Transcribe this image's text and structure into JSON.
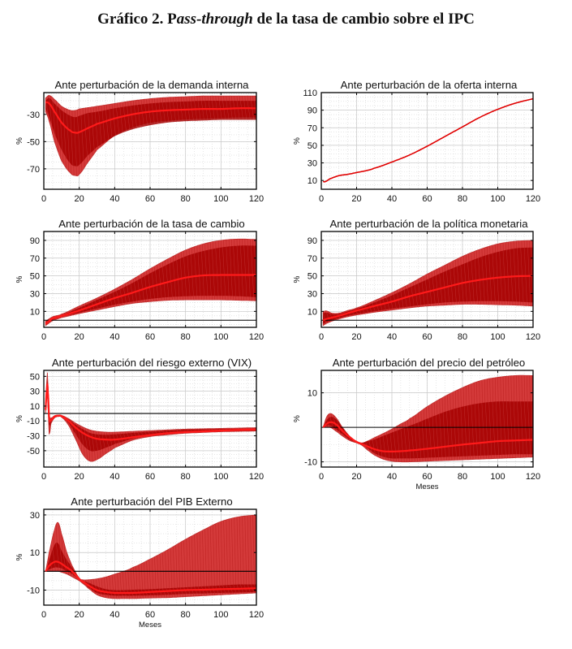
{
  "figure": {
    "title_prefix": "Gráfico 2. P",
    "title_italic": "ass-through",
    "title_suffix": " de la tasa de cambio sobre el IPC"
  },
  "colors": {
    "band_outer": "#d43a3a",
    "band_inner": "#a50000",
    "median_line": "#ff1a1a",
    "zero_line": "#000000",
    "grid": "#c8c8c8"
  },
  "chart_data": [
    {
      "id": "demanda-interna",
      "type": "area",
      "title": "Ante perturbación de la demanda interna",
      "xlabel": "",
      "ylabel": "%",
      "xlim": [
        0,
        120
      ],
      "ylim": [
        -85,
        -14
      ],
      "xticks": [
        0,
        20,
        40,
        60,
        80,
        100,
        120
      ],
      "yticks": [
        -30,
        -50,
        -70
      ],
      "zero_line": false,
      "x": [
        1,
        3,
        6,
        10,
        15,
        18,
        20,
        25,
        30,
        40,
        50,
        60,
        70,
        80,
        90,
        100,
        110,
        120
      ],
      "series": [
        {
          "name": "upper",
          "values": [
            -18,
            -16,
            -19,
            -24,
            -27,
            -27,
            -26,
            -25,
            -24,
            -22,
            -20,
            -18.5,
            -17.5,
            -17,
            -16.5,
            -16.5,
            -16.5,
            -16.5
          ]
        },
        {
          "name": "inner_upper",
          "values": [
            -20,
            -18,
            -22,
            -27,
            -31,
            -32,
            -31,
            -29,
            -28,
            -25.5,
            -23.5,
            -22,
            -21,
            -20.5,
            -20,
            -20,
            -20,
            -20
          ]
        },
        {
          "name": "median",
          "values": [
            -21,
            -22,
            -28,
            -36,
            -42,
            -43.5,
            -43,
            -40,
            -37,
            -33,
            -30,
            -28,
            -27,
            -26.5,
            -26,
            -26,
            -25.5,
            -25.5
          ]
        },
        {
          "name": "inner_lower",
          "values": [
            -26,
            -32,
            -44,
            -56,
            -66,
            -68,
            -67,
            -60,
            -54,
            -46,
            -41,
            -38,
            -36,
            -35,
            -34.5,
            -34,
            -34,
            -34
          ]
        },
        {
          "name": "lower",
          "values": [
            -28,
            -35,
            -50,
            -64,
            -73,
            -75,
            -74,
            -65,
            -56,
            -45.5,
            -39.5,
            -36,
            -34.5,
            -33.5,
            -33,
            -32.5,
            -32,
            -32
          ]
        }
      ]
    },
    {
      "id": "oferta-interna",
      "type": "line",
      "title": "Ante perturbación de la oferta interna",
      "xlabel": "",
      "ylabel": "%",
      "xlim": [
        0,
        120
      ],
      "ylim": [
        0,
        110
      ],
      "xticks": [
        0,
        20,
        40,
        60,
        80,
        100,
        120
      ],
      "yticks": [
        10,
        30,
        50,
        70,
        90,
        110
      ],
      "zero_line": false,
      "x": [
        1,
        2,
        5,
        10,
        15,
        20,
        25,
        30,
        40,
        50,
        60,
        70,
        80,
        90,
        100,
        110,
        120
      ],
      "series": [
        {
          "name": "median",
          "values": [
            9,
            8.5,
            12,
            15.5,
            17,
            19,
            21,
            24,
            31,
            39,
            49,
            60,
            71,
            82,
            91,
            98,
            103
          ]
        }
      ]
    },
    {
      "id": "tasa-de-cambio",
      "type": "area",
      "title": "Ante perturbación de la tasa de cambio",
      "xlabel": "",
      "ylabel": "%",
      "xlim": [
        0,
        120
      ],
      "ylim": [
        -8,
        100
      ],
      "xticks": [
        0,
        20,
        40,
        60,
        80,
        100,
        120
      ],
      "yticks": [
        10,
        30,
        50,
        70,
        90
      ],
      "zero_line": true,
      "x": [
        1,
        5,
        10,
        20,
        30,
        40,
        50,
        60,
        70,
        80,
        90,
        100,
        110,
        120
      ],
      "series": [
        {
          "name": "upper",
          "values": [
            -1,
            4,
            7,
            16,
            25,
            35,
            46,
            58,
            69,
            79,
            86,
            90,
            91.5,
            91
          ]
        },
        {
          "name": "inner_upper",
          "values": [
            -2,
            3,
            6,
            14,
            23,
            32,
            42,
            53,
            63,
            72,
            78,
            82,
            84,
            84
          ]
        },
        {
          "name": "median",
          "values": [
            -4,
            2,
            5,
            11,
            18,
            25,
            31,
            37.5,
            43,
            48,
            50.5,
            51,
            51,
            51
          ]
        },
        {
          "name": "inner_lower",
          "values": [
            -5,
            0.5,
            4,
            8.5,
            13,
            17.5,
            21,
            24,
            26,
            27,
            27.5,
            27.5,
            27,
            26
          ]
        },
        {
          "name": "lower",
          "values": [
            -6,
            -0.5,
            3,
            7.5,
            11.5,
            15.5,
            19,
            21,
            22.5,
            23,
            23,
            23,
            22.5,
            22
          ]
        }
      ]
    },
    {
      "id": "politica-monetaria",
      "type": "area",
      "title": "Ante perturbación de la política monetaria",
      "xlabel": "",
      "ylabel": "%",
      "xlim": [
        0,
        120
      ],
      "ylim": [
        -8,
        100
      ],
      "xticks": [
        0,
        20,
        40,
        60,
        80,
        100,
        120
      ],
      "yticks": [
        10,
        30,
        50,
        70,
        90
      ],
      "zero_line": true,
      "x": [
        1,
        3,
        6,
        10,
        15,
        20,
        30,
        40,
        50,
        60,
        70,
        80,
        90,
        100,
        110,
        120
      ],
      "series": [
        {
          "name": "upper",
          "values": [
            10,
            10.5,
            8,
            8,
            11,
            14,
            22,
            31,
            41,
            52,
            62,
            72,
            80,
            86,
            89,
            90
          ]
        },
        {
          "name": "inner_upper",
          "values": [
            8,
            8.5,
            7,
            7,
            10,
            13,
            20,
            28,
            37,
            46,
            55,
            63,
            71,
            77,
            81,
            82
          ]
        },
        {
          "name": "median",
          "values": [
            0,
            1.5,
            3,
            5,
            8,
            11,
            16,
            21,
            27,
            32,
            37,
            42,
            45.5,
            48,
            49.5,
            50
          ]
        },
        {
          "name": "inner_lower",
          "values": [
            -4,
            -2,
            0,
            2.5,
            5,
            7,
            10,
            13,
            15.5,
            18,
            20,
            21,
            21.5,
            21.5,
            21,
            20
          ]
        },
        {
          "name": "lower",
          "values": [
            -6,
            -3.5,
            -1,
            1.5,
            4,
            6,
            9,
            11.5,
            14,
            16,
            17,
            18,
            18,
            17.5,
            17,
            16
          ]
        }
      ]
    },
    {
      "id": "riesgo-externo",
      "type": "area",
      "title": "Ante perturbación del riesgo externo (VIX)",
      "xlabel": "",
      "ylabel": "%",
      "xlim": [
        0,
        120
      ],
      "ylim": [
        -72,
        58
      ],
      "xticks": [
        0,
        20,
        40,
        60,
        80,
        100,
        120
      ],
      "yticks": [
        50,
        30,
        10,
        -10,
        -30,
        -50
      ],
      "zero_line": true,
      "x": [
        1,
        2,
        3,
        4,
        6,
        8,
        10,
        14,
        18,
        22,
        26,
        30,
        35,
        40,
        50,
        60,
        70,
        80,
        90,
        100,
        110,
        120
      ],
      "series": [
        {
          "name": "upper",
          "values": [
            10,
            55,
            0,
            -6,
            -3,
            -2,
            -2.5,
            -7,
            -13,
            -18,
            -22,
            -24,
            -25,
            -25,
            -24,
            -23,
            -22,
            -21,
            -20.5,
            -20,
            -19.5,
            -19
          ]
        },
        {
          "name": "inner_upper",
          "values": [
            8,
            45,
            -2,
            -7,
            -3.5,
            -2.5,
            -3,
            -8,
            -15,
            -21,
            -26,
            -28,
            -28.5,
            -28,
            -26,
            -24.5,
            -23,
            -22,
            -21.5,
            -21,
            -20.5,
            -20
          ]
        },
        {
          "name": "median",
          "values": [
            5,
            40,
            -5,
            -9,
            -4,
            -3,
            -3.5,
            -10,
            -19,
            -26,
            -31,
            -34,
            -35,
            -35,
            -32,
            -29,
            -26.5,
            -25,
            -24,
            -23,
            -22,
            -21.5
          ]
        },
        {
          "name": "inner_lower",
          "values": [
            2,
            30,
            -15,
            -12,
            -5,
            -3.5,
            -4,
            -13,
            -28,
            -42,
            -50,
            -50,
            -46,
            -41,
            -34,
            -30,
            -28,
            -26,
            -25,
            -24,
            -23.5,
            -23
          ]
        },
        {
          "name": "lower",
          "values": [
            0,
            25,
            -28,
            -14,
            -6,
            -4,
            -5,
            -16,
            -35,
            -55,
            -64,
            -62,
            -54,
            -46,
            -36,
            -31,
            -28.5,
            -26.5,
            -25.5,
            -24.5,
            -24,
            -23.5
          ]
        }
      ]
    },
    {
      "id": "precio-petroleo",
      "type": "area",
      "title": "Ante perturbación del precio del petróleo",
      "xlabel": "Meses",
      "ylabel": "%",
      "xlim": [
        0,
        120
      ],
      "ylim": [
        -11.5,
        16.5
      ],
      "xticks": [
        0,
        20,
        40,
        60,
        80,
        100,
        120
      ],
      "yticks": [
        10,
        -10
      ],
      "zero_line": true,
      "x": [
        1,
        3,
        5,
        8,
        12,
        16,
        20,
        23,
        26,
        30,
        35,
        40,
        45,
        50,
        60,
        70,
        80,
        90,
        100,
        110,
        120
      ],
      "series": [
        {
          "name": "upper",
          "values": [
            0,
            3,
            4,
            3,
            0,
            -2.5,
            -4,
            -4.5,
            -4,
            -3,
            -1.8,
            -0.5,
            1,
            2.5,
            6,
            9,
            11.5,
            13.5,
            14.5,
            15,
            15
          ]
        },
        {
          "name": "inner_upper",
          "values": [
            0,
            2,
            3,
            2.5,
            0,
            -2.5,
            -4,
            -4.5,
            -4,
            -3.5,
            -2.5,
            -1.5,
            -0.5,
            0.5,
            2.5,
            4.5,
            6,
            7,
            7.5,
            7.5,
            7.5
          ]
        },
        {
          "name": "median",
          "values": [
            0,
            1,
            1.5,
            1,
            -1,
            -2.8,
            -4.2,
            -4.8,
            -5.5,
            -6.3,
            -6.9,
            -7.0,
            -6.9,
            -6.7,
            -6.2,
            -5.6,
            -5.0,
            -4.5,
            -4.0,
            -3.8,
            -3.6
          ]
        },
        {
          "name": "inner_lower",
          "values": [
            0,
            0.5,
            0.5,
            -0.5,
            -2,
            -3.5,
            -4.5,
            -5,
            -6,
            -7.5,
            -8.5,
            -9,
            -9,
            -9,
            -8.8,
            -8.6,
            -8.4,
            -8.2,
            -8,
            -7.8,
            -7.8
          ]
        },
        {
          "name": "lower",
          "values": [
            0,
            0,
            0,
            -1,
            -2.5,
            -3.8,
            -4.5,
            -5.2,
            -6.5,
            -8,
            -9.2,
            -9.8,
            -10,
            -10,
            -9.8,
            -9.6,
            -9.4,
            -9.2,
            -9,
            -8.8,
            -8.6
          ]
        }
      ]
    },
    {
      "id": "pib-externo",
      "type": "area",
      "title": "Ante perturbación del PIB Externo",
      "xlabel": "Meses",
      "ylabel": "%",
      "xlim": [
        0,
        120
      ],
      "ylim": [
        -18,
        33
      ],
      "xticks": [
        0,
        20,
        40,
        60,
        80,
        100,
        120
      ],
      "yticks": [
        30,
        10,
        -10
      ],
      "zero_line": true,
      "x": [
        1,
        3,
        6,
        8,
        10,
        13,
        16,
        20,
        22,
        25,
        30,
        35,
        40,
        45,
        50,
        60,
        70,
        80,
        90,
        100,
        110,
        120
      ],
      "series": [
        {
          "name": "upper",
          "values": [
            0,
            10,
            22,
            26,
            20,
            10,
            3,
            -3.5,
            -4.5,
            -4.5,
            -4,
            -3,
            -1.5,
            0,
            2,
            6.5,
            11.5,
            17,
            22,
            26.5,
            29,
            30
          ]
        },
        {
          "name": "inner_upper",
          "values": [
            0,
            6,
            14,
            15,
            11,
            6,
            2,
            -3.5,
            -5,
            -6,
            -8,
            -9.5,
            -10,
            -10,
            -9.8,
            -9.5,
            -9,
            -8.5,
            -8,
            -7.5,
            -7,
            -7
          ]
        },
        {
          "name": "median",
          "values": [
            0,
            3,
            5,
            5,
            4,
            2,
            0,
            -4,
            -5.5,
            -7.5,
            -10,
            -11,
            -11.5,
            -11.5,
            -11.5,
            -11,
            -10.5,
            -10,
            -9.8,
            -9.5,
            -9.3,
            -9
          ]
        },
        {
          "name": "inner_lower",
          "values": [
            0,
            1,
            2,
            2,
            1.5,
            0,
            -1.5,
            -4.5,
            -6,
            -8.5,
            -11.5,
            -12.5,
            -13,
            -13,
            -13,
            -12.8,
            -12.5,
            -12,
            -11.8,
            -11.5,
            -11.3,
            -11
          ]
        },
        {
          "name": "lower",
          "values": [
            0,
            0,
            0,
            0,
            -0.5,
            -1.5,
            -3,
            -5,
            -6.5,
            -9,
            -12.5,
            -14,
            -14.5,
            -14.5,
            -14.5,
            -14.2,
            -14,
            -13.5,
            -13,
            -12.5,
            -12,
            -11.5
          ]
        }
      ]
    }
  ]
}
